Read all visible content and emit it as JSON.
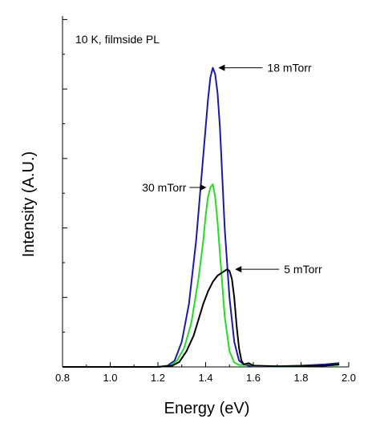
{
  "chart_data": {
    "type": "line",
    "title": "10 K, filmside PL",
    "xlabel": "Energy (eV)",
    "ylabel": "Intensity (A.U.)",
    "xlim": [
      0.8,
      2.0
    ],
    "ylim": [
      0,
      1.0
    ],
    "x_ticks": [
      "0.8",
      "1.0",
      "1.2",
      "1.4",
      "1.6",
      "1.8",
      "2.0"
    ],
    "y_tick_labels_shown": false,
    "grid": false,
    "series": [
      {
        "name": "18 mTorr",
        "color": "#1a1aa8",
        "x": [
          0.8,
          1.0,
          1.2,
          1.24,
          1.27,
          1.3,
          1.33,
          1.36,
          1.38,
          1.4,
          1.41,
          1.42,
          1.43,
          1.44,
          1.45,
          1.46,
          1.47,
          1.48,
          1.5,
          1.52,
          1.54,
          1.56,
          1.58,
          1.6,
          1.7,
          1.8,
          1.9,
          1.96
        ],
        "y": [
          0.0,
          0.0,
          0.0,
          0.004,
          0.02,
          0.08,
          0.2,
          0.4,
          0.58,
          0.76,
          0.85,
          0.92,
          0.95,
          0.93,
          0.87,
          0.76,
          0.6,
          0.44,
          0.22,
          0.08,
          0.02,
          0.008,
          0.004,
          0.002,
          0.002,
          0.004,
          0.008,
          0.012
        ]
      },
      {
        "name": "30 mTorr",
        "color": "#22dd22",
        "x": [
          0.8,
          1.0,
          1.2,
          1.25,
          1.28,
          1.31,
          1.34,
          1.37,
          1.39,
          1.4,
          1.41,
          1.42,
          1.43,
          1.44,
          1.45,
          1.46,
          1.47,
          1.48,
          1.5,
          1.52,
          1.54,
          1.56,
          1.58,
          1.6,
          1.7,
          1.8,
          1.9,
          1.96
        ],
        "y": [
          0.0,
          0.0,
          0.0,
          0.004,
          0.02,
          0.06,
          0.14,
          0.28,
          0.4,
          0.48,
          0.54,
          0.57,
          0.58,
          0.54,
          0.46,
          0.36,
          0.26,
          0.16,
          0.05,
          0.014,
          0.006,
          0.006,
          0.01,
          0.003,
          0.002,
          0.002,
          0.004,
          0.006
        ]
      },
      {
        "name": "5 mTorr",
        "color": "#000000",
        "x": [
          0.8,
          1.0,
          1.2,
          1.26,
          1.29,
          1.32,
          1.35,
          1.37,
          1.39,
          1.41,
          1.43,
          1.45,
          1.47,
          1.49,
          1.5,
          1.51,
          1.52,
          1.53,
          1.54,
          1.55,
          1.56,
          1.58,
          1.6,
          1.7,
          1.8,
          1.9,
          1.96
        ],
        "y": [
          0.0,
          0.0,
          0.0,
          0.004,
          0.016,
          0.05,
          0.1,
          0.15,
          0.2,
          0.24,
          0.27,
          0.29,
          0.3,
          0.31,
          0.305,
          0.28,
          0.22,
          0.13,
          0.06,
          0.02,
          0.008,
          0.012,
          0.004,
          0.002,
          0.002,
          0.004,
          0.008
        ]
      }
    ],
    "annotations": [
      {
        "text": "18 mTorr",
        "series": "18 mTorr",
        "x": 1.43,
        "y": 0.95,
        "label_side": "right"
      },
      {
        "text": "30 mTorr",
        "series": "30 mTorr",
        "x": 1.42,
        "y": 0.57,
        "label_side": "left"
      },
      {
        "text": "5 mTorr",
        "series": "5 mTorr",
        "x": 1.5,
        "y": 0.31,
        "label_side": "right"
      }
    ]
  }
}
